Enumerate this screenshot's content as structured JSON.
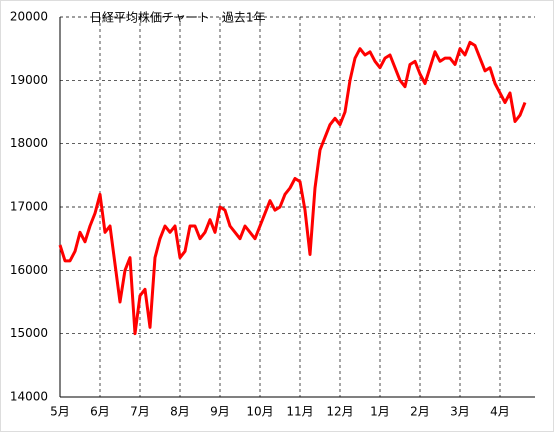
{
  "chart_data": {
    "type": "line",
    "title": "日経平均株価チャート　過去1年",
    "categories": [
      "5月",
      null,
      null,
      null,
      null,
      null,
      null,
      null,
      "6月",
      null,
      null,
      null,
      null,
      null,
      null,
      null,
      "7月",
      null,
      null,
      null,
      null,
      null,
      null,
      null,
      "8月",
      null,
      null,
      null,
      null,
      null,
      null,
      null,
      "9月",
      null,
      null,
      null,
      null,
      null,
      null,
      null,
      "10月",
      null,
      null,
      null,
      null,
      null,
      null,
      null,
      "11月",
      null,
      null,
      null,
      null,
      null,
      null,
      null,
      "12月",
      null,
      null,
      null,
      null,
      null,
      null,
      null,
      "1月",
      null,
      null,
      null,
      null,
      null,
      null,
      null,
      "2月",
      null,
      null,
      null,
      null,
      null,
      null,
      null,
      "3月",
      null,
      null,
      null,
      null,
      null,
      null,
      null,
      "4月",
      null,
      null,
      null,
      null,
      null,
      null,
      null
    ],
    "values": [
      16400,
      16150,
      16150,
      16300,
      16600,
      16450,
      16700,
      16900,
      17200,
      16600,
      16700,
      16100,
      15500,
      16000,
      16200,
      15000,
      15600,
      15700,
      15100,
      16200,
      16500,
      16700,
      16600,
      16700,
      16200,
      16300,
      16700,
      16700,
      16500,
      16600,
      16800,
      16600,
      17000,
      16950,
      16700,
      16600,
      16500,
      16700,
      16600,
      16500,
      16700,
      16900,
      17100,
      16950,
      17000,
      17200,
      17300,
      17450,
      17400,
      16950,
      16250,
      17300,
      17900,
      18100,
      18300,
      18400,
      18300,
      18500,
      19000,
      19350,
      19500,
      19400,
      19450,
      19300,
      19200,
      19350,
      19400,
      19200,
      19000,
      18900,
      19250,
      19300,
      19100,
      18950,
      19200,
      19450,
      19300,
      19350,
      19350,
      19250,
      19500,
      19400,
      19600,
      19550,
      19350,
      19150,
      19200,
      18950,
      18800,
      18650,
      18800,
      18350,
      18450,
      18650,
      null,
      null
    ],
    "color": "#ff0000",
    "ylim": [
      14000,
      20000
    ],
    "yticks": [
      14000,
      15000,
      16000,
      17000,
      18000,
      19000,
      20000
    ],
    "grid": true
  }
}
